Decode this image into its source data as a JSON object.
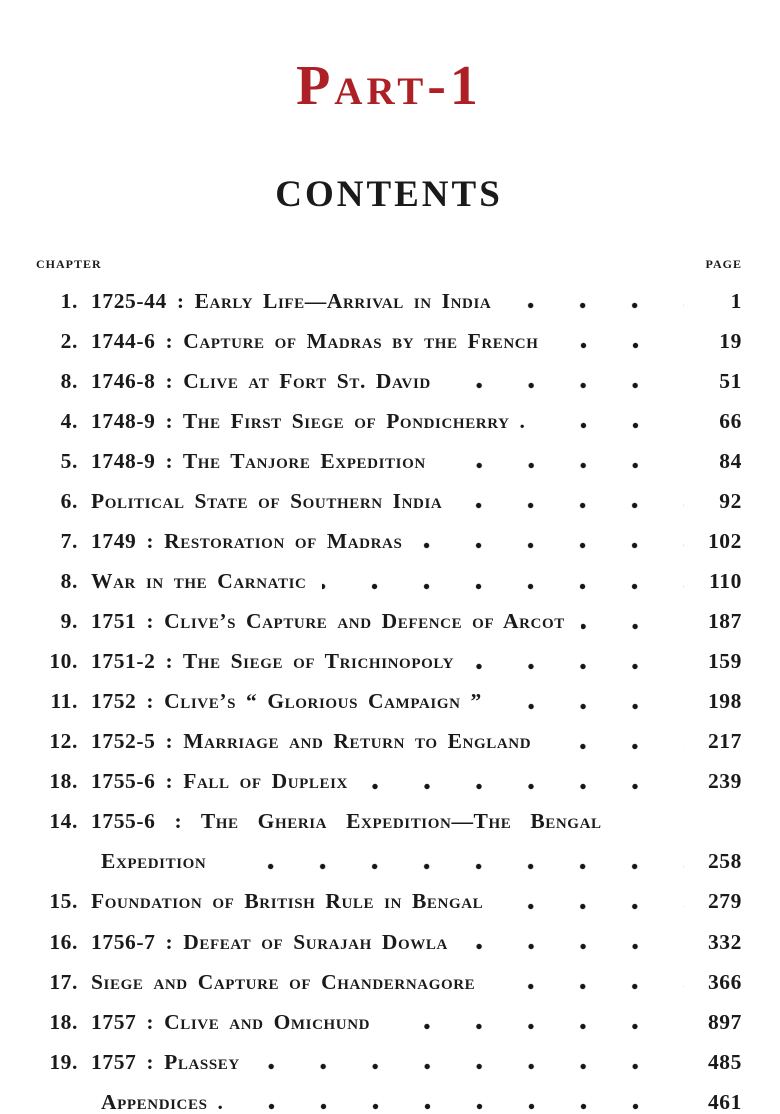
{
  "page": {
    "part_title": "Part-1",
    "contents_title": "CONTENTS",
    "columns": {
      "chapter_label": "CHAPTER",
      "page_label": "PAGE"
    },
    "colors": {
      "accent_red": "#ad2026",
      "ink": "#1a1a1a",
      "paper": "#ffffff"
    },
    "entries": [
      {
        "num": "1.",
        "title": "1725-44 : Early Life—Arrival in India",
        "page": "1"
      },
      {
        "num": "2.",
        "title": "1744-6 : Capture of Madras by the French",
        "page": "19"
      },
      {
        "num": "8.",
        "title": "1746-8 : Clive at Fort St. David",
        "page": "51"
      },
      {
        "num": "4.",
        "title": "1748-9 : The First Siege of Pondicherry .",
        "page": "66"
      },
      {
        "num": "5.",
        "title": "1748-9 : The Tanjore Expedition",
        "page": "84"
      },
      {
        "num": "6.",
        "title": "Political State of Southern India",
        "page": "92"
      },
      {
        "num": "7.",
        "title": "1749 : Restoration of Madras",
        "page": "102"
      },
      {
        "num": "8.",
        "title": "War in the Carnatic",
        "page": "110"
      },
      {
        "num": "9.",
        "title": "1751 : Clive’s Capture and Defence of Arcot",
        "page": "187"
      },
      {
        "num": "10.",
        "title": "1751-2 : The Siege of Trichinopoly",
        "page": "159"
      },
      {
        "num": "11.",
        "title": "1752 : Clive’s “ Glorious Campaign ”",
        "page": "198"
      },
      {
        "num": "12.",
        "title": "1752-5 : Marriage and Return to England",
        "page": "217"
      },
      {
        "num": "18.",
        "title": "1755-6 : Fall of Dupleix",
        "page": "239"
      },
      {
        "num": "14.",
        "title": "1755-6 : The Gheria Expedition—The Bengal",
        "title2": "Expedition",
        "page": "258"
      },
      {
        "num": "15.",
        "title": "Foundation of British Rule in Bengal",
        "page": "279"
      },
      {
        "num": "16.",
        "title": "1756-7 : Defeat of Surajah Dowla",
        "page": "332"
      },
      {
        "num": "17.",
        "title": "Siege and Capture of Chandernagore",
        "page": "366"
      },
      {
        "num": "18.",
        "title": "1757 : Clive and Omichund",
        "page": "897"
      },
      {
        "num": "19.",
        "title": "1757 : Plassey",
        "page": "485"
      },
      {
        "num": "",
        "title": "Appendices .",
        "page": "461"
      }
    ]
  }
}
